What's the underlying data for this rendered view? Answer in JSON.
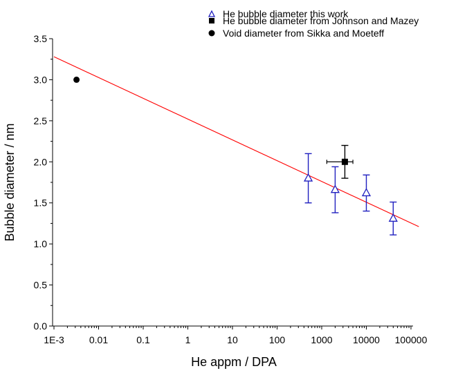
{
  "chart_data": {
    "type": "scatter",
    "xscale": "log",
    "xlim": [
      0.001,
      150000
    ],
    "ylim": [
      0.0,
      3.5
    ],
    "xlabel": "He appm / DPA",
    "ylabel": "Bubble diameter / nm",
    "xticks": [
      0.001,
      0.01,
      0.1,
      1,
      10,
      100,
      1000,
      10000,
      100000
    ],
    "xtick_labels": [
      "1E-3",
      "0.01",
      "0.1",
      "1",
      "10",
      "100",
      "1000",
      "10000",
      "100000"
    ],
    "yticks": [
      0.0,
      0.5,
      1.0,
      1.5,
      2.0,
      2.5,
      3.0,
      3.5
    ],
    "ytick_labels": [
      "0.0",
      "0.5",
      "1.0",
      "1.5",
      "2.0",
      "2.5",
      "3.0",
      "3.5"
    ],
    "grid": false,
    "legend_position": "top-right",
    "series": [
      {
        "name": "He bubble diameter this work",
        "marker": "open-triangle",
        "color": "#1f1fbf",
        "points": [
          {
            "x": 500,
            "y": 1.8,
            "yerr": 0.3
          },
          {
            "x": 2000,
            "y": 1.66,
            "yerr": 0.28
          },
          {
            "x": 10000,
            "y": 1.62,
            "yerr": 0.22
          },
          {
            "x": 40000,
            "y": 1.31,
            "yerr": 0.2
          }
        ]
      },
      {
        "name": "He bubble diameter from Johnson and Mazey",
        "marker": "filled-square",
        "color": "#000000",
        "points": [
          {
            "x": 3300,
            "y": 2.0,
            "yerr": 0.2,
            "xerr_low": 1300,
            "xerr_high": 5000
          }
        ]
      },
      {
        "name": "Void diameter from Sikka and Moeteff",
        "marker": "filled-circle",
        "color": "#000000",
        "points": [
          {
            "x": 0.0032,
            "y": 3.0
          }
        ]
      }
    ],
    "fit_line": {
      "color": "#ff0000",
      "x_start": 0.001,
      "y_start": 3.28,
      "x_end": 150000,
      "y_end": 1.21
    }
  }
}
